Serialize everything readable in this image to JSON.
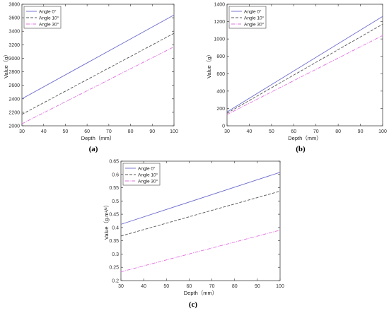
{
  "chart_data": [
    {
      "type": "line",
      "caption": "(a)",
      "xlabel": "Depth（mm）",
      "ylabel": "Value（g）",
      "xlim": [
        30,
        100
      ],
      "ylim": [
        2000,
        3800
      ],
      "xticks": [
        30,
        40,
        50,
        60,
        70,
        80,
        90,
        100
      ],
      "yticks": [
        2000,
        2200,
        2400,
        2600,
        2800,
        3000,
        3200,
        3400,
        3600,
        3800
      ],
      "grid": false,
      "legend": "top-left",
      "series": [
        {
          "name": "Angle 0°",
          "color": "#6a6acd",
          "dash": "",
          "x": [
            30,
            100
          ],
          "y": [
            2400,
            3640
          ]
        },
        {
          "name": "Angle 10°",
          "color": "#555555",
          "dash": "4,2",
          "x": [
            30,
            100
          ],
          "y": [
            2170,
            3370
          ]
        },
        {
          "name": "Angle 30°",
          "color": "#e070e0",
          "dash": "5,1.5,1,1.5",
          "x": [
            30,
            100
          ],
          "y": [
            2030,
            3170
          ]
        }
      ]
    },
    {
      "type": "line",
      "caption": "(b)",
      "xlabel": "Depth（mm）",
      "ylabel": "Value（g）",
      "xlim": [
        30,
        100
      ],
      "ylim": [
        0,
        1400
      ],
      "xticks": [
        30,
        40,
        50,
        60,
        70,
        80,
        90,
        100
      ],
      "yticks": [
        0,
        200,
        400,
        600,
        800,
        1000,
        1200,
        1400
      ],
      "grid": false,
      "legend": "top-left",
      "series": [
        {
          "name": "Angle 0°",
          "color": "#6a6acd",
          "dash": "",
          "x": [
            30,
            100
          ],
          "y": [
            160,
            1260
          ]
        },
        {
          "name": "Angle 10°",
          "color": "#555555",
          "dash": "4,2",
          "x": [
            30,
            100
          ],
          "y": [
            145,
            1170
          ]
        },
        {
          "name": "Angle 30°",
          "color": "#e070e0",
          "dash": "5,1.5,1,1.5",
          "x": [
            30,
            100
          ],
          "y": [
            130,
            1040
          ]
        }
      ]
    },
    {
      "type": "line",
      "caption": "(c)",
      "xlabel": "Depth（mm）",
      "ylabel": "Value（g.m²/²）",
      "xlim": [
        30,
        100
      ],
      "ylim": [
        0.2,
        0.65
      ],
      "xticks": [
        30,
        40,
        50,
        60,
        70,
        80,
        90,
        100
      ],
      "yticks": [
        0.2,
        0.25,
        0.3,
        0.35,
        0.4,
        0.45,
        0.5,
        0.55,
        0.6,
        0.65
      ],
      "grid": false,
      "legend": "top-left",
      "series": [
        {
          "name": "Angle 0°",
          "color": "#6a6acd",
          "dash": "",
          "x": [
            30,
            100
          ],
          "y": [
            0.412,
            0.608
          ]
        },
        {
          "name": "Angle 10°",
          "color": "#555555",
          "dash": "4,2",
          "x": [
            30,
            100
          ],
          "y": [
            0.368,
            0.537
          ]
        },
        {
          "name": "Angle 30°",
          "color": "#e070e0",
          "dash": "5,1.5,1,1.5",
          "x": [
            30,
            100
          ],
          "y": [
            0.233,
            0.39
          ]
        }
      ]
    }
  ]
}
